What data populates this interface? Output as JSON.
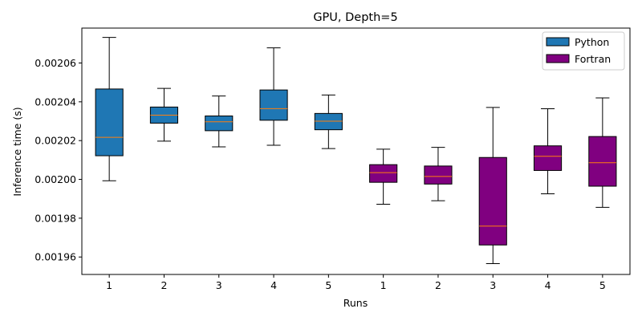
{
  "chart_data": {
    "type": "boxplot",
    "title": "GPU, Depth=5",
    "xlabel": "Runs",
    "ylabel": "Inference time (s)",
    "ylim": [
      0.001951,
      0.002078
    ],
    "yticks": [
      "0.00196",
      "0.00198",
      "0.00200",
      "0.00202",
      "0.00204",
      "0.00206"
    ],
    "ytick_values": [
      0.00196,
      0.00198,
      0.002,
      0.00202,
      0.00204,
      0.00206
    ],
    "categories": [
      "1",
      "2",
      "3",
      "4",
      "5",
      "1",
      "2",
      "3",
      "4",
      "5"
    ],
    "legend": {
      "placement": "top-right"
    },
    "median_color": "#ff7f0e",
    "series": [
      {
        "name": "Python",
        "color": "#1f77b4",
        "boxes": [
          {
            "label": "1",
            "whislo": 0.0019993,
            "q1": 0.0020122,
            "med": 0.0020217,
            "q3": 0.0020466,
            "whishi": 0.0020732
          },
          {
            "label": "2",
            "whislo": 0.0020197,
            "q1": 0.002029,
            "med": 0.0020331,
            "q3": 0.0020373,
            "whishi": 0.0020469
          },
          {
            "label": "3",
            "whislo": 0.0020168,
            "q1": 0.0020251,
            "med": 0.0020297,
            "q3": 0.0020327,
            "whishi": 0.002043
          },
          {
            "label": "4",
            "whislo": 0.0020176,
            "q1": 0.0020305,
            "med": 0.0020365,
            "q3": 0.0020461,
            "whishi": 0.0020678
          },
          {
            "label": "5",
            "whislo": 0.0020159,
            "q1": 0.0020256,
            "med": 0.00203,
            "q3": 0.002034,
            "whishi": 0.0020435
          }
        ]
      },
      {
        "name": "Fortran",
        "color": "#800080",
        "boxes": [
          {
            "label": "1",
            "whislo": 0.0019872,
            "q1": 0.0019985,
            "med": 0.0020035,
            "q3": 0.0020076,
            "whishi": 0.0020156
          },
          {
            "label": "2",
            "whislo": 0.001989,
            "q1": 0.0019976,
            "med": 0.0020015,
            "q3": 0.0020069,
            "whishi": 0.0020165
          },
          {
            "label": "3",
            "whislo": 0.0019566,
            "q1": 0.0019662,
            "med": 0.0019759,
            "q3": 0.0020113,
            "whishi": 0.0020371
          },
          {
            "label": "4",
            "whislo": 0.0019926,
            "q1": 0.0020046,
            "med": 0.0020119,
            "q3": 0.0020173,
            "whishi": 0.0020364
          },
          {
            "label": "5",
            "whislo": 0.0019856,
            "q1": 0.0019965,
            "med": 0.0020086,
            "q3": 0.0020221,
            "whishi": 0.002042
          }
        ]
      }
    ]
  }
}
